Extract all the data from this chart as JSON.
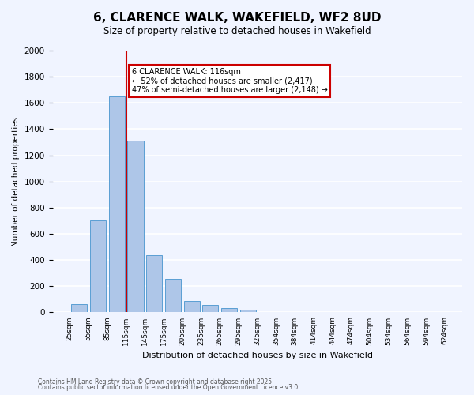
{
  "title": "6, CLARENCE WALK, WAKEFIELD, WF2 8UD",
  "subtitle": "Size of property relative to detached houses in Wakefield",
  "xlabel": "Distribution of detached houses by size in Wakefield",
  "ylabel": "Number of detached properties",
  "bar_values": [
    65,
    700,
    1650,
    1310,
    440,
    255,
    90,
    55,
    30,
    20,
    5,
    0,
    0,
    0,
    0,
    0,
    0,
    0,
    0,
    0
  ],
  "bin_labels": [
    "25sqm",
    "55sqm",
    "85sqm",
    "115sqm",
    "145sqm",
    "175sqm",
    "205sqm",
    "235sqm",
    "265sqm",
    "295sqm",
    "325sqm",
    "354sqm",
    "384sqm",
    "414sqm",
    "444sqm",
    "474sqm",
    "504sqm",
    "534sqm",
    "564sqm",
    "594sqm",
    "624sqm"
  ],
  "bar_color": "#aec6e8",
  "bar_edge_color": "#5a9fd4",
  "vline_x": 2,
  "vline_color": "#cc0000",
  "annotation_title": "6 CLARENCE WALK: 116sqm",
  "annotation_left": "← 52% of detached houses are smaller (2,417)",
  "annotation_right": "47% of semi-detached houses are larger (2,148) →",
  "annotation_box_color": "#ffffff",
  "annotation_box_edge": "#cc0000",
  "ylim": [
    0,
    2000
  ],
  "yticks": [
    0,
    200,
    400,
    600,
    800,
    1000,
    1200,
    1400,
    1600,
    1800,
    2000
  ],
  "footnote1": "Contains HM Land Registry data © Crown copyright and database right 2025.",
  "footnote2": "Contains public sector information licensed under the Open Government Licence v3.0.",
  "bg_color": "#f0f4ff",
  "grid_color": "#ffffff"
}
